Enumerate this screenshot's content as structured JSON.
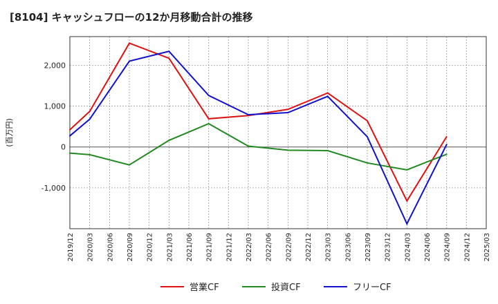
{
  "chart_data": {
    "type": "line",
    "title": "[8104]  キャッシュフローの12か月移動合計の推移",
    "ylabel": "(百万円)",
    "xlabel": "",
    "ylim": [
      -2000,
      2700
    ],
    "yticks": [
      -1000,
      0,
      1000,
      2000
    ],
    "ytick_labels": [
      "-1,000",
      "0",
      "1,000",
      "2,000"
    ],
    "categories": [
      "2019/12",
      "2020/03",
      "2020/06",
      "2020/09",
      "2020/12",
      "2021/03",
      "2021/06",
      "2021/09",
      "2021/12",
      "2022/03",
      "2022/06",
      "2022/09",
      "2022/12",
      "2023/03",
      "2023/06",
      "2023/09",
      "2023/12",
      "2024/03",
      "2024/06",
      "2024/09",
      "2024/12",
      "2025/03"
    ],
    "grid": true,
    "legend_position": "bottom",
    "series": [
      {
        "name": "営業CF",
        "color": "#dd1111",
        "values": [
          420,
          870,
          null,
          2540,
          null,
          2170,
          null,
          690,
          null,
          770,
          null,
          920,
          null,
          1320,
          null,
          640,
          null,
          -1320,
          null,
          250,
          null,
          null
        ]
      },
      {
        "name": "投資CF",
        "color": "#228822",
        "values": [
          -150,
          -190,
          null,
          -440,
          null,
          160,
          null,
          570,
          null,
          20,
          null,
          -80,
          null,
          -90,
          null,
          -390,
          null,
          -560,
          null,
          -180,
          null,
          null
        ]
      },
      {
        "name": "フリーCF",
        "color": "#1111cc",
        "values": [
          270,
          680,
          null,
          2100,
          null,
          2340,
          null,
          1260,
          null,
          790,
          null,
          840,
          null,
          1240,
          null,
          250,
          null,
          -1880,
          null,
          60,
          null,
          null
        ]
      }
    ]
  }
}
